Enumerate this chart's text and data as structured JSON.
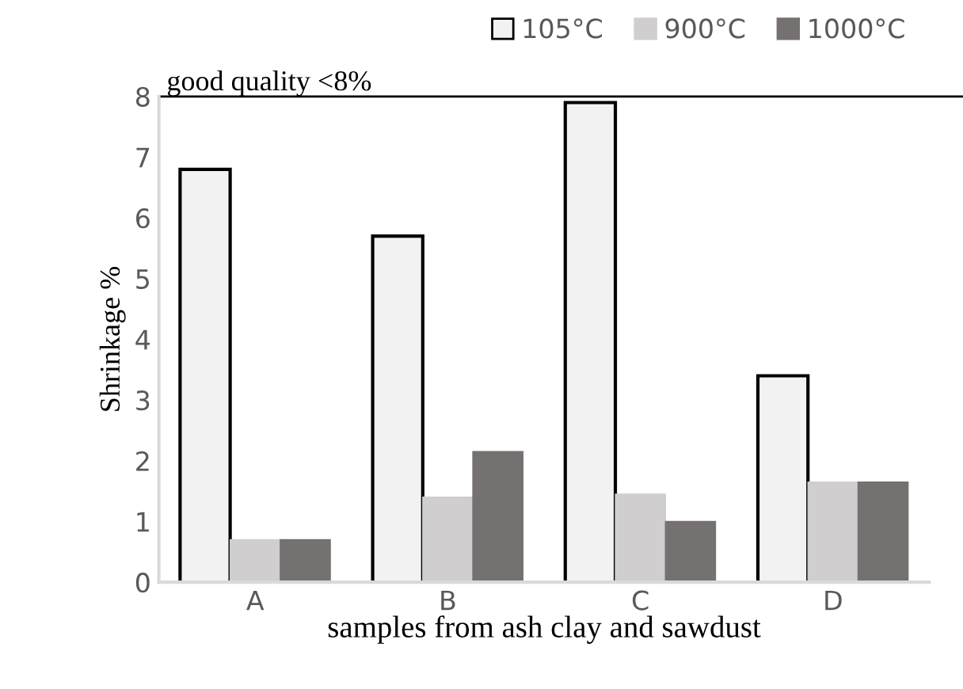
{
  "chart_data": {
    "type": "bar",
    "xlabel": "samples from ash clay and sawdust",
    "ylabel": "Shrinkage %",
    "categories": [
      "A",
      "B",
      "C",
      "D"
    ],
    "series": [
      {
        "name": "105°C",
        "color": "#f2f2f2",
        "values": [
          6.8,
          5.7,
          7.9,
          3.4
        ]
      },
      {
        "name": "900°C",
        "color": "#d0cece",
        "values": [
          0.7,
          1.4,
          1.45,
          1.65
        ]
      },
      {
        "name": "1000°C",
        "color": "#767171",
        "values": [
          0.7,
          2.15,
          1.0,
          1.65
        ]
      }
    ],
    "ylim": [
      0,
      8
    ],
    "yticks": [
      0,
      1,
      2,
      3,
      4,
      5,
      6,
      7,
      8
    ],
    "ref_lines": [
      {
        "axis": "y",
        "value": 8,
        "label": "good quality <8%",
        "color": "#000000"
      }
    ],
    "legend": "top right",
    "grid": false
  }
}
